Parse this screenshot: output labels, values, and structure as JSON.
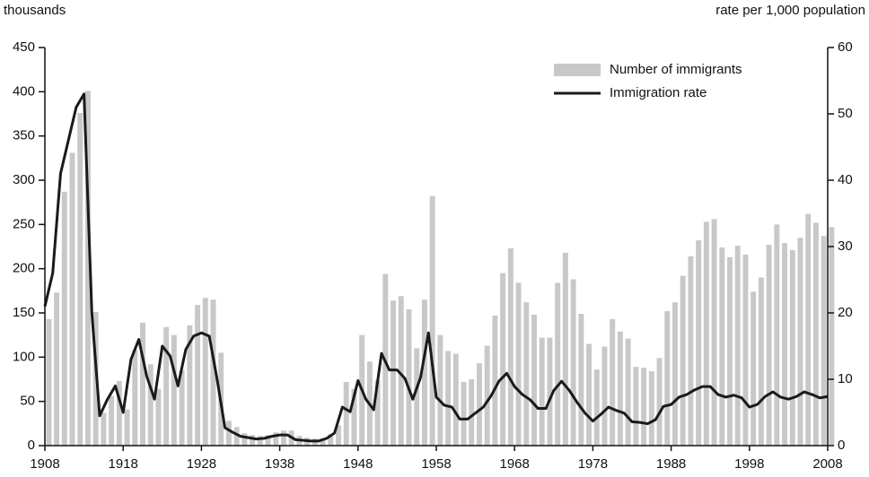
{
  "chart_data": {
    "type": "bar-line",
    "y_label": "thousands",
    "y2_label": "rate per 1,000 population",
    "x": [
      1908,
      1909,
      1910,
      1911,
      1912,
      1913,
      1914,
      1915,
      1916,
      1917,
      1918,
      1919,
      1920,
      1921,
      1922,
      1923,
      1924,
      1925,
      1926,
      1927,
      1928,
      1929,
      1930,
      1931,
      1932,
      1933,
      1934,
      1935,
      1936,
      1937,
      1938,
      1939,
      1940,
      1941,
      1942,
      1943,
      1944,
      1945,
      1946,
      1947,
      1948,
      1949,
      1950,
      1951,
      1952,
      1953,
      1954,
      1955,
      1956,
      1957,
      1958,
      1959,
      1960,
      1961,
      1962,
      1963,
      1964,
      1965,
      1966,
      1967,
      1968,
      1969,
      1970,
      1971,
      1972,
      1973,
      1974,
      1975,
      1976,
      1977,
      1978,
      1979,
      1980,
      1981,
      1982,
      1983,
      1984,
      1985,
      1986,
      1987,
      1988,
      1989,
      1990,
      1991,
      1992,
      1993,
      1994,
      1995,
      1996,
      1997,
      1998,
      1999,
      2000,
      2001,
      2002,
      2003,
      2004,
      2005,
      2006,
      2007,
      2008
    ],
    "series": [
      {
        "name": "Number of immigrants",
        "color": "#c8c8c8",
        "kind": "bar",
        "values": [
          143,
          173,
          287,
          331,
          376,
          401,
          151,
          37,
          56,
          73,
          41,
          108,
          139,
          92,
          64,
          134,
          125,
          85,
          136,
          159,
          167,
          165,
          105,
          28,
          21,
          14,
          12,
          11,
          12,
          15,
          17,
          17,
          11,
          9,
          8,
          8,
          13,
          23,
          72,
          64,
          125,
          95,
          74,
          194,
          164,
          169,
          154,
          110,
          165,
          282,
          125,
          107,
          104,
          72,
          75,
          93,
          113,
          147,
          195,
          223,
          184,
          162,
          148,
          122,
          122,
          184,
          218,
          188,
          149,
          115,
          86,
          112,
          143,
          129,
          121,
          89,
          88,
          84,
          99,
          152,
          162,
          192,
          214,
          232,
          253,
          256,
          224,
          213,
          226,
          216,
          174,
          190,
          227,
          250,
          229,
          221,
          235,
          262,
          252,
          237,
          247
        ]
      },
      {
        "name": "Immigration rate",
        "color": "#1a1a1a",
        "kind": "line",
        "axis": "y2",
        "values": [
          21,
          26,
          41,
          46,
          51,
          53,
          20,
          4.5,
          7,
          9,
          5,
          13,
          16,
          10.5,
          7,
          15,
          13.5,
          9,
          14.5,
          16.5,
          17,
          16.5,
          10,
          2.7,
          2,
          1.4,
          1.2,
          1,
          1.1,
          1.4,
          1.6,
          1.6,
          0.9,
          0.8,
          0.7,
          0.7,
          1.1,
          1.9,
          5.8,
          5.1,
          9.8,
          7,
          5.4,
          13.9,
          11.4,
          11.4,
          10.1,
          7,
          10.3,
          17,
          7.3,
          6.1,
          5.8,
          4,
          4,
          4.9,
          5.8,
          7.5,
          9.7,
          10.9,
          8.9,
          7.7,
          6.9,
          5.6,
          5.6,
          8.3,
          9.7,
          8.3,
          6.5,
          4.9,
          3.7,
          4.7,
          5.8,
          5.3,
          4.9,
          3.6,
          3.5,
          3.3,
          3.9,
          5.9,
          6.2,
          7.3,
          7.7,
          8.4,
          8.9,
          8.9,
          7.7,
          7.3,
          7.6,
          7.2,
          5.8,
          6.2,
          7.4,
          8.1,
          7.3,
          7,
          7.4,
          8.1,
          7.7,
          7.2,
          7.4
        ]
      }
    ],
    "xlim": [
      1908,
      2008
    ],
    "xticks": [
      1908,
      1918,
      1928,
      1938,
      1948,
      1958,
      1968,
      1978,
      1988,
      1998,
      2008
    ],
    "ylim": [
      0,
      450
    ],
    "yticks": [
      0,
      50,
      100,
      150,
      200,
      250,
      300,
      350,
      400,
      450
    ],
    "y2lim": [
      0,
      60
    ],
    "y2ticks": [
      0,
      10,
      20,
      30,
      40,
      50,
      60
    ],
    "legend": "top-right"
  }
}
